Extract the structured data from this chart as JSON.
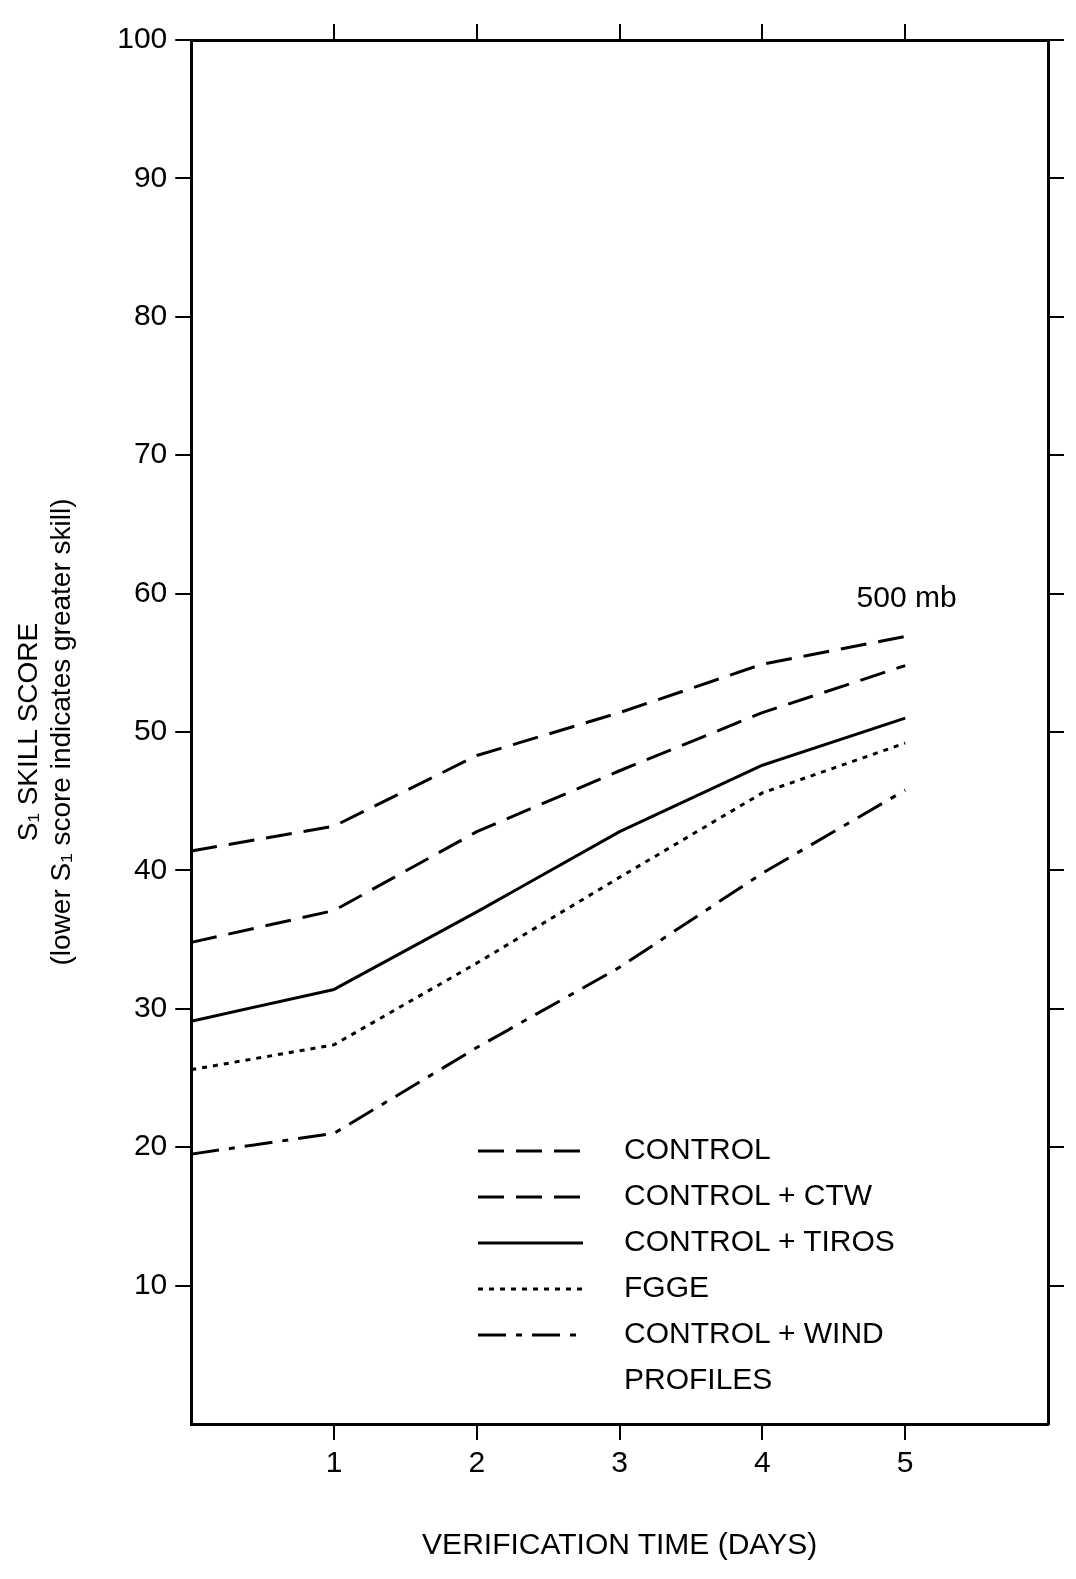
{
  "chart_data": {
    "type": "line",
    "xlabel": "VERIFICATION TIME (DAYS)",
    "ylabel": "S₁ SKILL SCORE\n(lower S₁ score indicates greater skill)",
    "x": [
      0,
      1,
      2,
      3,
      4,
      5
    ],
    "xlim": [
      0,
      6
    ],
    "xticks": [
      1,
      2,
      3,
      4,
      5
    ],
    "ylim": [
      0,
      100
    ],
    "yticks": [
      10,
      20,
      30,
      40,
      50,
      60,
      70,
      80,
      90,
      100
    ],
    "grid": false,
    "legend": "bottom right",
    "marker": "none",
    "annotations": [
      "500 mb"
    ],
    "series": [
      {
        "name": "CONTROL",
        "color": "#000000",
        "line_style": "dashed",
        "values": [
          41.4,
          43.2,
          48.3,
          51.4,
          54.9,
          56.9
        ]
      },
      {
        "name": "CONTROL + CTW",
        "color": "#000000",
        "line_style": "dashed",
        "values": [
          34.8,
          37.1,
          42.8,
          47.2,
          51.4,
          54.8
        ]
      },
      {
        "name": "CONTROL + TIROS",
        "color": "#000000",
        "line_style": "solid",
        "values": [
          29.1,
          31.4,
          37.0,
          42.8,
          47.6,
          51.0
        ]
      },
      {
        "name": "FGGE",
        "color": "#000000",
        "line_style": "dotted",
        "values": [
          25.6,
          27.4,
          33.3,
          39.5,
          45.6,
          49.2
        ]
      },
      {
        "name": "CONTROL + WIND PROFILES",
        "color": "#000000",
        "line_style": "dashdot",
        "values": [
          19.5,
          21.0,
          27.2,
          33.0,
          39.8,
          45.8
        ]
      }
    ]
  }
}
